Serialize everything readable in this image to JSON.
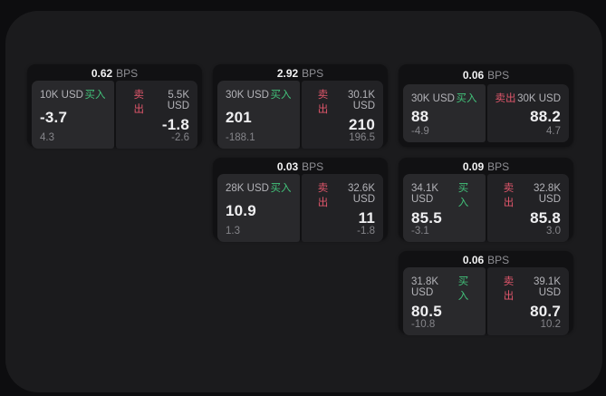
{
  "labels": {
    "buy": "买入",
    "sell": "卖出",
    "bps_unit": "BPS"
  },
  "colors": {
    "background": "#0d0d0f",
    "surface": "#1b1b1d",
    "card": "#111113",
    "buy_tile": "#29292c",
    "sell_tile": "#222225",
    "buy_green": "#42c17a",
    "sell_red": "#e0566b",
    "price_white": "#efeff1",
    "muted_gray": "#85858a"
  },
  "cards": [
    {
      "bps": "0.62",
      "buy": {
        "notional": "10K USD",
        "price": "-3.7",
        "delta": "4.3"
      },
      "sell": {
        "notional": "5.5K USD",
        "price": "-1.8",
        "delta": "-2.6"
      }
    },
    {
      "bps": "2.92",
      "buy": {
        "notional": "30K USD",
        "price": "201",
        "delta": "-188.1"
      },
      "sell": {
        "notional": "30.1K USD",
        "price": "210",
        "delta": "196.5"
      }
    },
    {
      "bps": "0.06",
      "buy": {
        "notional": "30K USD",
        "price": "88",
        "delta": "-4.9"
      },
      "sell": {
        "notional": "30K USD",
        "price": "88.2",
        "delta": "4.7"
      }
    },
    {
      "bps": "0.03",
      "buy": {
        "notional": "28K USD",
        "price": "10.9",
        "delta": "1.3"
      },
      "sell": {
        "notional": "32.6K USD",
        "price": "11",
        "delta": "-1.8"
      }
    },
    {
      "bps": "0.09",
      "buy": {
        "notional": "34.1K USD",
        "price": "85.5",
        "delta": "-3.1"
      },
      "sell": {
        "notional": "32.8K USD",
        "price": "85.8",
        "delta": "3.0"
      }
    },
    {
      "bps": "0.06",
      "buy": {
        "notional": "31.8K USD",
        "price": "80.5",
        "delta": "-10.8"
      },
      "sell": {
        "notional": "39.1K USD",
        "price": "80.7",
        "delta": "10.2"
      }
    }
  ]
}
